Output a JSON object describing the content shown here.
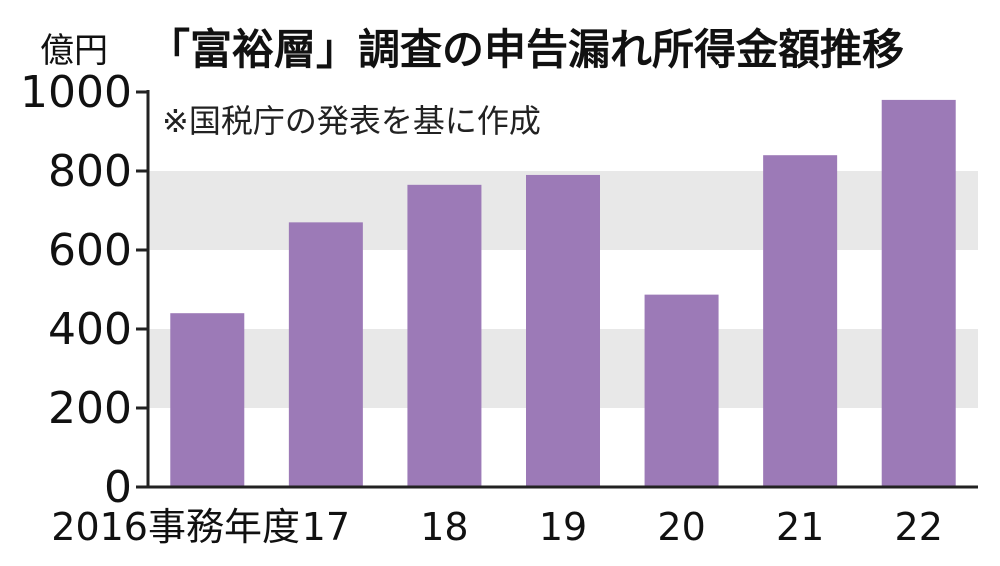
{
  "chart_data": {
    "type": "bar",
    "unit": "億円",
    "title": "「富裕層」調査の申告漏れ所得金額推移",
    "note": "※国税庁の発表を基に作成",
    "categories": [
      "2016事務年度",
      "17",
      "18",
      "19",
      "20",
      "21",
      "22"
    ],
    "values": [
      440,
      670,
      765,
      790,
      487,
      840,
      980
    ],
    "ylim": [
      0,
      1000
    ],
    "yticks": [
      0,
      200,
      400,
      600,
      800,
      1000
    ],
    "grid": "alternating horizontal bands",
    "colors": {
      "bar": "#9c7ab7",
      "band": "#e8e8e8",
      "axis": "#222222"
    }
  }
}
